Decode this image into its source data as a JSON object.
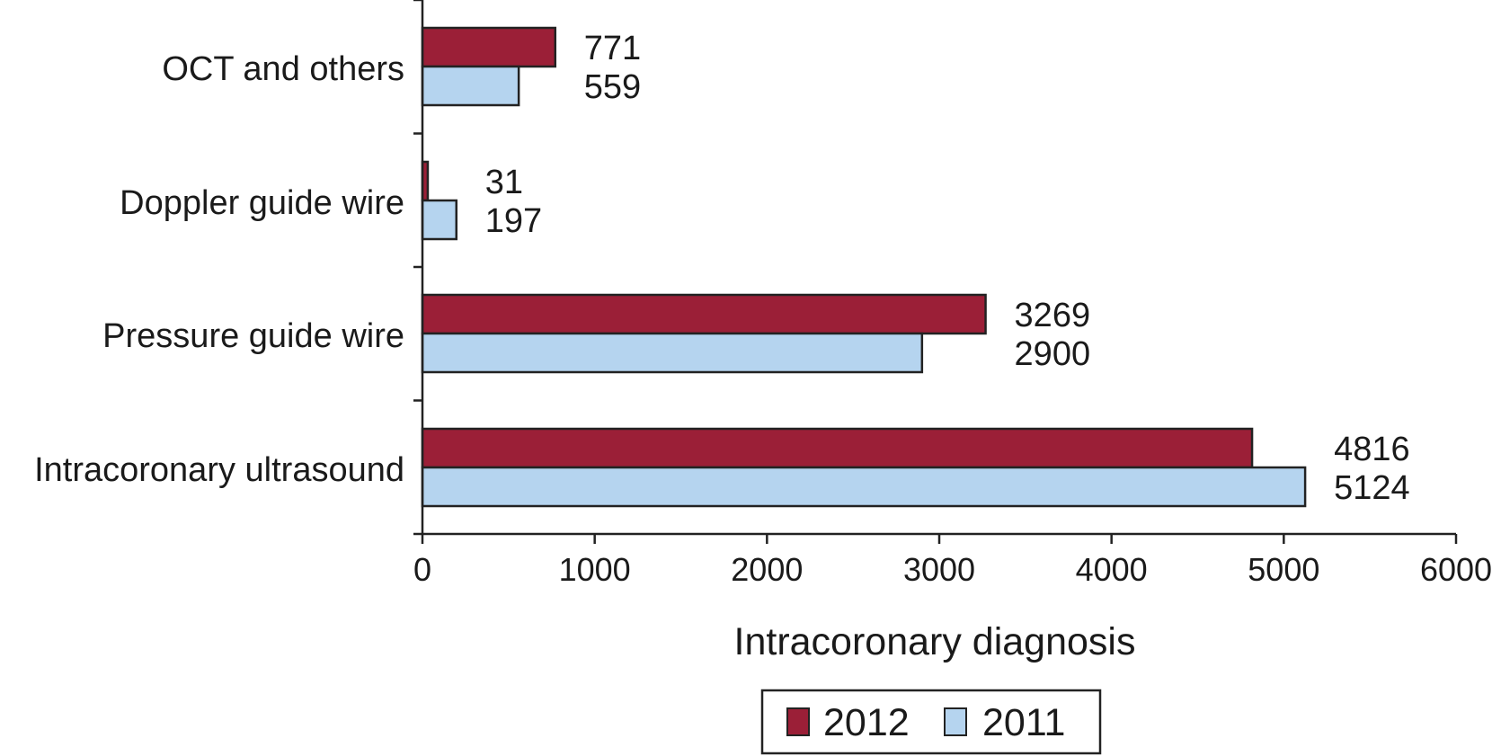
{
  "chart_data": {
    "type": "bar",
    "orientation": "horizontal",
    "xlabel": "Intracoronary diagnosis",
    "ylabel": "",
    "title": "",
    "xlim": [
      0,
      6000
    ],
    "xticks": [
      0,
      1000,
      2000,
      3000,
      4000,
      5000,
      6000
    ],
    "categories": [
      "OCT and others",
      "Doppler guide wire",
      "Pressure guide wire",
      "Intracoronary ultrasound"
    ],
    "series": [
      {
        "name": "2012",
        "color": "#9b1f37",
        "values": [
          771,
          31,
          3269,
          4816
        ]
      },
      {
        "name": "2011",
        "color": "#b5d4ef",
        "values": [
          559,
          197,
          2900,
          5124
        ]
      }
    ],
    "data_labels": true,
    "grid": false,
    "legend_position": "bottom"
  }
}
